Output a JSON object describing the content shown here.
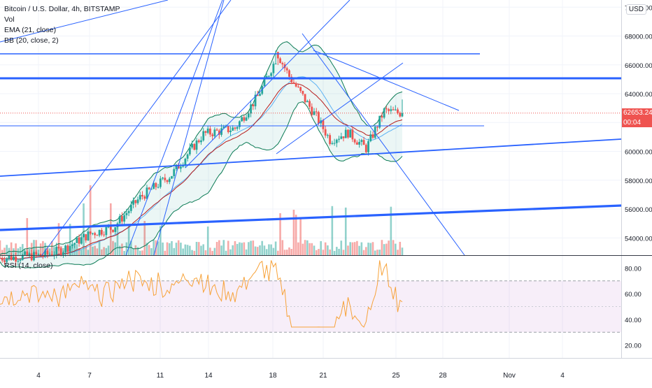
{
  "legend": {
    "title": "Bitcoin / U.S. Dollar, 4h, BITSTAMP",
    "vol": "Vol",
    "ema": "EMA (21, close)",
    "bb": "BB (20, close, 2)"
  },
  "rsi_legend": "RSI (14, close)",
  "currency": "USD",
  "last_price": "62653.24",
  "countdown": "00:04",
  "colors": {
    "up": "#26a69a",
    "down": "#ef5350",
    "trendline": "#2962ff",
    "ema": "#b71c1c",
    "bb": "#0a7a54",
    "rsi": "#f7a33b",
    "rsi_band": "#9c27b0",
    "grid": "#f0f3fa"
  },
  "chart_data": [
    {
      "type": "candlestick",
      "title": "Bitcoin / U.S. Dollar, 4h, BITSTAMP",
      "ylim": [
        52800,
        70500
      ],
      "y_ticks": [
        "70000.00",
        "68000.00",
        "66000.00",
        "64000.00",
        "62000.00",
        "60000.00",
        "58000.00",
        "56000.00",
        "54000.00"
      ],
      "x_ticks": [
        "4",
        "7",
        "11",
        "14",
        "18",
        "21",
        "25",
        "28",
        "Nov",
        "4"
      ],
      "last_price": 62653.24
    },
    {
      "type": "line",
      "title": "RSI (14, close)",
      "ylim": [
        10,
        90
      ],
      "y_ticks": [
        "80.00",
        "60.00",
        "40.00",
        "20.00"
      ],
      "bands": [
        70,
        30
      ]
    }
  ]
}
